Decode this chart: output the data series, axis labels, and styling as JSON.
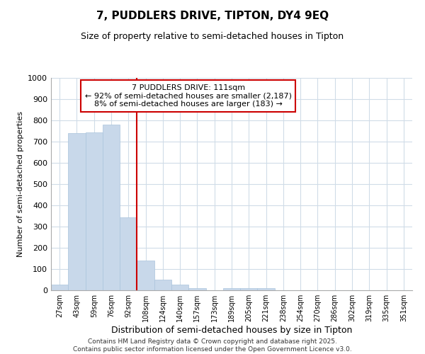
{
  "title": "7, PUDDLERS DRIVE, TIPTON, DY4 9EQ",
  "subtitle": "Size of property relative to semi-detached houses in Tipton",
  "xlabel": "Distribution of semi-detached houses by size in Tipton",
  "ylabel": "Number of semi-detached properties",
  "categories": [
    "27sqm",
    "43sqm",
    "59sqm",
    "76sqm",
    "92sqm",
    "108sqm",
    "124sqm",
    "140sqm",
    "157sqm",
    "173sqm",
    "189sqm",
    "205sqm",
    "221sqm",
    "238sqm",
    "254sqm",
    "270sqm",
    "286sqm",
    "302sqm",
    "319sqm",
    "335sqm",
    "351sqm"
  ],
  "values": [
    27,
    740,
    745,
    780,
    345,
    140,
    50,
    27,
    10,
    0,
    10,
    10,
    10,
    0,
    0,
    0,
    0,
    0,
    0,
    0,
    0
  ],
  "vline_index": 5,
  "bar_color": "#c8d8ea",
  "bar_edge_color": "#aac4dc",
  "vline_color": "#cc0000",
  "annotation_title": "7 PUDDLERS DRIVE: 111sqm",
  "annotation_line2": "← 92% of semi-detached houses are smaller (2,187)",
  "annotation_line3": "8% of semi-detached houses are larger (183) →",
  "annotation_box_color": "#cc0000",
  "ylim": [
    0,
    1000
  ],
  "yticks": [
    0,
    100,
    200,
    300,
    400,
    500,
    600,
    700,
    800,
    900,
    1000
  ],
  "footer_line1": "Contains HM Land Registry data © Crown copyright and database right 2025.",
  "footer_line2": "Contains public sector information licensed under the Open Government Licence v3.0.",
  "background_color": "#ffffff",
  "grid_color": "#d0dce8"
}
